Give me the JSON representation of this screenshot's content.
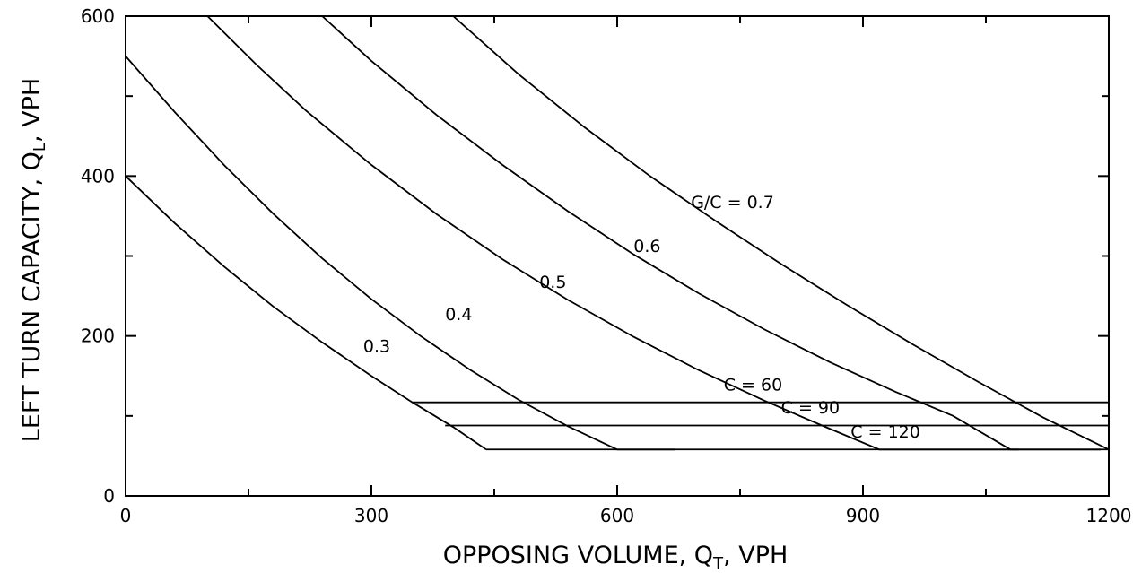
{
  "chart_data": {
    "type": "line",
    "xlabel": "OPPOSING VOLUME, Q",
    "xlabel_sub": "T",
    "xlabel_suffix": ", VPH",
    "ylabel": "LEFT TURN CAPACITY, Q",
    "ylabel_sub": "L",
    "ylabel_suffix": ", VPH",
    "xlim": [
      0,
      1200
    ],
    "ylim": [
      0,
      600
    ],
    "x_ticks": [
      0,
      300,
      600,
      900,
      1200
    ],
    "x_tick_labels": [
      "0",
      "300",
      "600",
      "900",
      "1200"
    ],
    "y_ticks": [
      0,
      200,
      400,
      600
    ],
    "y_tick_labels": [
      "0",
      "200",
      "400",
      "600"
    ],
    "grid": false,
    "series": [
      {
        "name": "0.3",
        "label": "0.3",
        "points": [
          [
            0,
            400
          ],
          [
            60,
            341
          ],
          [
            120,
            287
          ],
          [
            180,
            237
          ],
          [
            240,
            192
          ],
          [
            300,
            150
          ],
          [
            350,
            117
          ],
          [
            400,
            86
          ],
          [
            440,
            58
          ]
        ]
      },
      {
        "name": "0.4",
        "label": "0.4",
        "points": [
          [
            0,
            550
          ],
          [
            60,
            480
          ],
          [
            120,
            414
          ],
          [
            180,
            353
          ],
          [
            240,
            297
          ],
          [
            300,
            246
          ],
          [
            360,
            200
          ],
          [
            420,
            158
          ],
          [
            480,
            120
          ],
          [
            540,
            87
          ],
          [
            600,
            58
          ],
          [
            670,
            58
          ]
        ]
      },
      {
        "name": "0.5",
        "label": "0.5",
        "points": [
          [
            100,
            600
          ],
          [
            160,
            539
          ],
          [
            220,
            482
          ],
          [
            300,
            414
          ],
          [
            380,
            352
          ],
          [
            460,
            296
          ],
          [
            540,
            245
          ],
          [
            620,
            199
          ],
          [
            700,
            157
          ],
          [
            780,
            119
          ],
          [
            850,
            88
          ],
          [
            920,
            58
          ],
          [
            1090,
            58
          ]
        ]
      },
      {
        "name": "0.6",
        "label": "0.6",
        "points": [
          [
            240,
            600
          ],
          [
            300,
            544
          ],
          [
            380,
            476
          ],
          [
            460,
            414
          ],
          [
            540,
            356
          ],
          [
            620,
            302
          ],
          [
            700,
            253
          ],
          [
            780,
            208
          ],
          [
            860,
            167
          ],
          [
            940,
            130
          ],
          [
            1010,
            100
          ],
          [
            1080,
            58
          ],
          [
            1190,
            58
          ]
        ]
      },
      {
        "name": "G/C = 0.7",
        "label": "G/C = 0.7",
        "points": [
          [
            400,
            600
          ],
          [
            480,
            527
          ],
          [
            560,
            461
          ],
          [
            640,
            400
          ],
          [
            720,
            344
          ],
          [
            800,
            290
          ],
          [
            880,
            239
          ],
          [
            960,
            190
          ],
          [
            1040,
            143
          ],
          [
            1120,
            98
          ],
          [
            1200,
            58
          ]
        ]
      }
    ],
    "horizontal_lines": [
      {
        "label": "C = 60",
        "y": 117,
        "x_start": 350,
        "x_end": 1200
      },
      {
        "label": "C = 90",
        "y": 88,
        "x_start": 390,
        "x_end": 1200
      },
      {
        "label": "C = 120",
        "y": 58,
        "x_start": 440,
        "x_end": 1200
      }
    ],
    "annotations": [
      {
        "text": "0.3",
        "x": 290,
        "y": 180
      },
      {
        "text": "0.4",
        "x": 390,
        "y": 220
      },
      {
        "text": "0.5",
        "x": 505,
        "y": 260
      },
      {
        "text": "0.6",
        "x": 620,
        "y": 305
      },
      {
        "text": "G/C = 0.7",
        "x": 690,
        "y": 360
      },
      {
        "text": "C = 60",
        "x": 730,
        "y": 132
      },
      {
        "text": "C = 90",
        "x": 800,
        "y": 103
      },
      {
        "text": "C = 120",
        "x": 885,
        "y": 73
      }
    ]
  }
}
